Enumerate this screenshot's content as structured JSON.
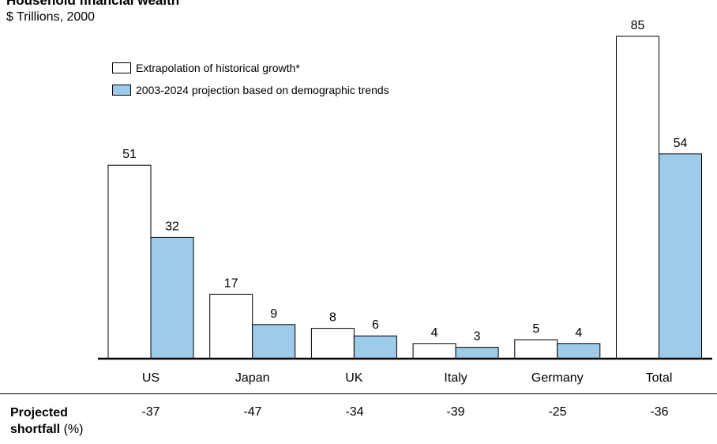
{
  "title": "Household financial wealth",
  "subtitle": "$ Trillions, 2000",
  "legend": {
    "historical": "Extrapolation of historical growth*",
    "projection": "2003-2024 projection based on demographic trends"
  },
  "colors": {
    "historical": "#ffffff",
    "projection": "#9ecbea",
    "outline": "#000000"
  },
  "chart_data": {
    "type": "bar",
    "title": "Household financial wealth",
    "subtitle": "$ Trillions, 2000",
    "categories": [
      "US",
      "Japan",
      "UK",
      "Italy",
      "Germany",
      "Total"
    ],
    "series": [
      {
        "name": "Extrapolation of historical growth*",
        "values": [
          51,
          17,
          8,
          4,
          5,
          85
        ]
      },
      {
        "name": "2003-2024 projection based on demographic trends",
        "values": [
          32,
          9,
          6,
          3,
          4,
          54
        ]
      }
    ],
    "ylim": [
      0,
      88
    ],
    "grid": false,
    "legend_position": "top-left"
  },
  "shortfall": {
    "label_bold_1": "Projected",
    "label_bold_2": "shortfall",
    "label_unit": " (%)",
    "values": [
      "-37",
      "-47",
      "-34",
      "-39",
      "-25",
      "-36"
    ]
  }
}
